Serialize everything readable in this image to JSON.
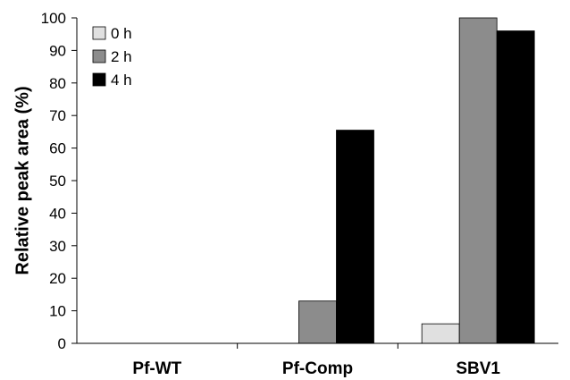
{
  "chart_data": {
    "type": "bar",
    "title": "",
    "xlabel": "",
    "ylabel": "Relative peak area (%)",
    "ylim": [
      0,
      100
    ],
    "yticks": [
      0,
      10,
      20,
      30,
      40,
      50,
      60,
      70,
      80,
      90,
      100
    ],
    "grid": false,
    "legend_position": "top-left",
    "categories": [
      "Pf-WT",
      "Pf-Comp",
      "SBV1"
    ],
    "series": [
      {
        "name": "0 h",
        "color": "#e0e0e0",
        "values": [
          0,
          0,
          6
        ]
      },
      {
        "name": "2 h",
        "color": "#8c8c8c",
        "values": [
          0,
          13,
          100
        ]
      },
      {
        "name": "4 h",
        "color": "#000000",
        "values": [
          0,
          65.5,
          96
        ]
      }
    ]
  }
}
